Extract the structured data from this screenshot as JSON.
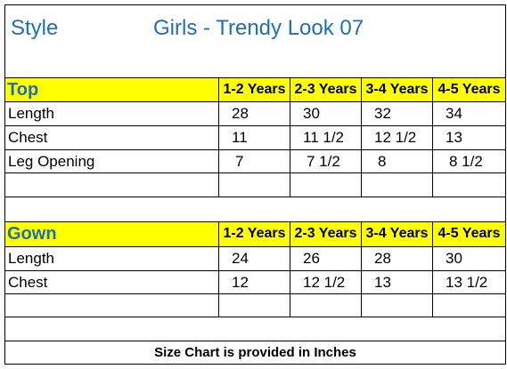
{
  "header": {
    "style_label": "Style",
    "title": "Girls  - Trendy Look 07"
  },
  "colors": {
    "yellow": "#ffff00",
    "blue": "#1f6fb5"
  },
  "top": {
    "section_label": "Top",
    "years": [
      "1-2 Years",
      "2-3 Years",
      "3-4 Years",
      "4-5 Years"
    ],
    "rows": [
      {
        "label": "Length",
        "values": [
          "28",
          "30",
          "32",
          "34"
        ]
      },
      {
        "label": "Chest",
        "values": [
          "11",
          "11 1/2",
          "12 1/2",
          "13"
        ]
      },
      {
        "label": "Leg Opening",
        "values": [
          "7",
          "7 1/2",
          "8",
          "8 1/2"
        ]
      }
    ]
  },
  "gown": {
    "section_label": "Gown",
    "years": [
      "1-2 Years",
      "2-3 Years",
      "3-4 Years",
      "4-5 Years"
    ],
    "rows": [
      {
        "label": "Length",
        "values": [
          "24",
          "26",
          "28",
          "30"
        ]
      },
      {
        "label": "Chest",
        "values": [
          "12",
          "12 1/2",
          "13",
          "13 1/2"
        ]
      }
    ]
  },
  "footer": {
    "note": "Size Chart is provided in Inches"
  }
}
